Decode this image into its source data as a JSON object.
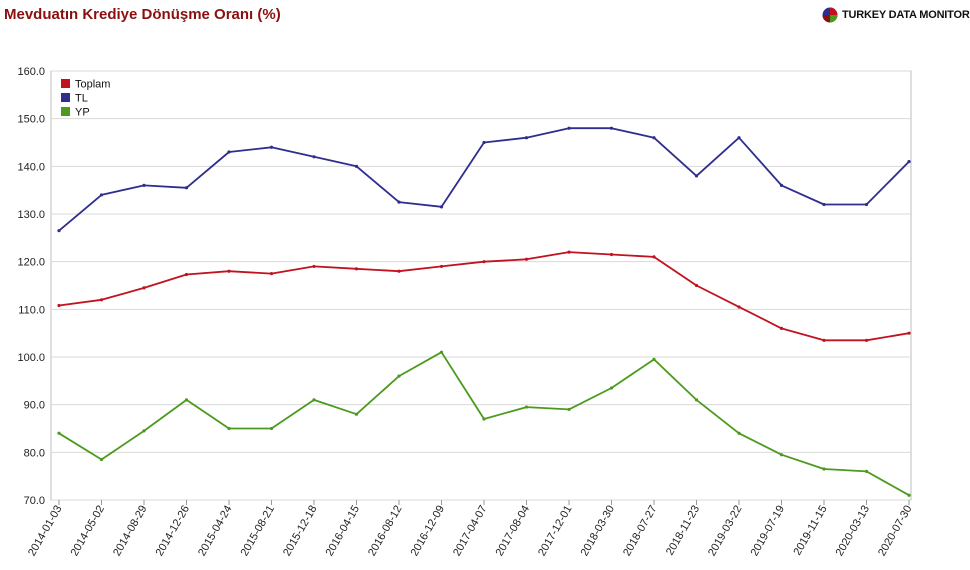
{
  "page": {
    "title": "Mevduatın Krediye Dönüşme Oranı (%)",
    "brand": "TURKEY DATA MONITOR"
  },
  "chart_data": {
    "type": "line",
    "title": "Mevduatın Krediye Dönüşme Oranı (%)",
    "xlabel": "",
    "ylabel": "",
    "ylim": [
      70,
      160
    ],
    "yticks": [
      "70.0",
      "80.0",
      "90.0",
      "100.0",
      "110.0",
      "120.0",
      "130.0",
      "140.0",
      "150.0",
      "160.0"
    ],
    "grid": true,
    "legend_position": "top-left",
    "x": [
      "2014-01-03",
      "2014-05-02",
      "2014-08-29",
      "2014-12-26",
      "2015-04-24",
      "2015-08-21",
      "2015-12-18",
      "2016-04-15",
      "2016-08-12",
      "2016-12-09",
      "2017-04-07",
      "2017-08-04",
      "2017-12-01",
      "2018-03-30",
      "2018-07-27",
      "2018-11-23",
      "2019-03-22",
      "2019-07-19",
      "2019-11-15",
      "2020-03-13",
      "2020-07-30"
    ],
    "series": [
      {
        "name": "Toplam",
        "color": "#c1121f",
        "values": [
          110.8,
          112.0,
          114.5,
          117.3,
          118.0,
          117.5,
          119.0,
          118.5,
          118.0,
          119.0,
          120.0,
          120.5,
          122.0,
          121.5,
          121.0,
          115.0,
          110.5,
          106.0,
          103.5,
          103.5,
          105.0
        ]
      },
      {
        "name": "TL",
        "color": "#2e2e8f",
        "values": [
          126.5,
          134.0,
          136.0,
          135.5,
          143.0,
          144.0,
          142.0,
          140.0,
          132.5,
          131.5,
          145.0,
          146.0,
          148.0,
          148.0,
          146.0,
          138.0,
          146.0,
          136.0,
          132.0,
          132.0,
          141.0
        ]
      },
      {
        "name": "YP",
        "color": "#4b9a1e",
        "values": [
          84.0,
          78.5,
          84.5,
          91.0,
          85.0,
          85.0,
          91.0,
          88.0,
          96.0,
          101.0,
          87.0,
          89.5,
          89.0,
          93.5,
          99.5,
          91.0,
          84.0,
          79.5,
          76.5,
          76.0,
          71.0
        ]
      }
    ]
  }
}
